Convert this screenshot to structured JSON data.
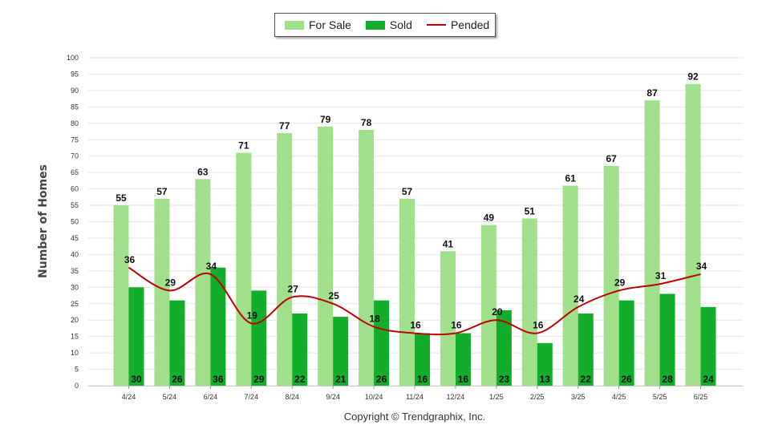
{
  "chart_data": {
    "type": "bar",
    "categories": [
      "4/24",
      "5/24",
      "6/24",
      "7/24",
      "8/24",
      "9/24",
      "10/24",
      "11/24",
      "12/24",
      "1/25",
      "2/25",
      "3/25",
      "4/25",
      "5/25",
      "6/25"
    ],
    "series": [
      {
        "name": "For Sale",
        "type": "bar",
        "color": "#a0e08a",
        "values": [
          55,
          57,
          63,
          71,
          77,
          79,
          78,
          57,
          41,
          49,
          51,
          61,
          67,
          87,
          92
        ]
      },
      {
        "name": "Sold",
        "type": "bar",
        "color": "#12ad2b",
        "values": [
          30,
          26,
          36,
          29,
          22,
          21,
          26,
          16,
          16,
          23,
          13,
          22,
          26,
          28,
          24
        ]
      },
      {
        "name": "Pended",
        "type": "line",
        "color": "#c00000",
        "values": [
          36,
          29,
          34,
          19,
          27,
          25,
          18,
          16,
          16,
          20,
          16,
          24,
          29,
          31,
          34
        ]
      }
    ],
    "ylabel": "Number of Homes",
    "xlabel": "",
    "ylim": [
      0,
      100
    ],
    "yticks": [
      0,
      5,
      10,
      15,
      20,
      25,
      30,
      35,
      40,
      45,
      50,
      55,
      60,
      65,
      70,
      75,
      80,
      85,
      90,
      95,
      100
    ],
    "grid": true,
    "legend_position": "top-center"
  },
  "footer": {
    "copyright": "Copyright © Trendgraphix, Inc."
  }
}
